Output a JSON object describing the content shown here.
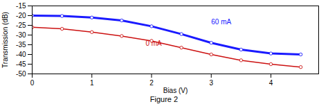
{
  "chart_data": {
    "type": "line",
    "title": "Figure 2",
    "xlabel": "Bias (V)",
    "ylabel": "Transmission (dB)",
    "x": [
      0.0,
      0.5,
      1.0,
      1.5,
      2.0,
      2.5,
      3.0,
      3.5,
      4.0,
      4.5
    ],
    "series": [
      {
        "color": "#1a1aff",
        "marker": "circle",
        "values": [
          -20.0,
          -20.2,
          -21.0,
          -22.5,
          -25.5,
          -29.5,
          -34.0,
          -37.5,
          -39.5,
          -40.0
        ]
      },
      {
        "color": "#cc1111",
        "marker": "circle",
        "values": [
          -26.0,
          -26.8,
          -28.5,
          -30.5,
          -33.0,
          -36.5,
          -40.0,
          -43.0,
          -45.0,
          -46.5
        ]
      }
    ],
    "annotations": [
      {
        "text": "60 mA",
        "x": 3.0,
        "y": -24.5,
        "color": "#1a1aff"
      },
      {
        "text": "0 mA",
        "x": 1.9,
        "y": -35.5,
        "color": "#cc1111"
      }
    ],
    "xlim": [
      0,
      4.8
    ],
    "xticks": [
      0,
      1,
      2,
      3,
      4
    ],
    "ylim": [
      -50,
      -15
    ],
    "yticks": [
      -50,
      -45,
      -40,
      -35,
      -30,
      -25,
      -20,
      -15
    ],
    "grid": false
  }
}
